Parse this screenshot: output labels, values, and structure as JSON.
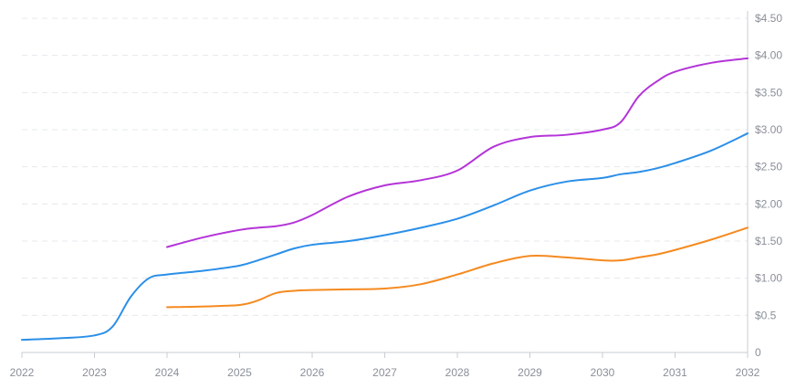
{
  "chart_data": {
    "type": "line",
    "title": "",
    "xlabel": "",
    "ylabel": "",
    "x": [
      2022,
      2022.5,
      2023,
      2023.25,
      2023.5,
      2023.75,
      2024,
      2024.5,
      2025,
      2025.25,
      2025.5,
      2025.75,
      2026,
      2026.5,
      2027,
      2027.5,
      2028,
      2028.5,
      2029,
      2029.5,
      2030,
      2030.25,
      2030.5,
      2030.75,
      2031,
      2031.5,
      2032
    ],
    "series": [
      {
        "color": "#2b8fe8",
        "values": [
          0.17,
          0.19,
          0.23,
          0.35,
          0.75,
          1.0,
          1.05,
          1.1,
          1.17,
          1.24,
          1.32,
          1.4,
          1.45,
          1.5,
          1.58,
          1.68,
          1.8,
          1.98,
          2.18,
          2.3,
          2.35,
          2.4,
          2.43,
          2.48,
          2.55,
          2.72,
          2.95
        ]
      },
      {
        "color": "#b434d8",
        "values": [
          null,
          null,
          null,
          null,
          null,
          null,
          1.42,
          1.55,
          1.65,
          1.68,
          1.7,
          1.75,
          1.85,
          2.1,
          2.25,
          2.32,
          2.45,
          2.77,
          2.9,
          2.93,
          3.0,
          3.1,
          3.45,
          3.65,
          3.78,
          3.9,
          3.96
        ]
      },
      {
        "color": "#f58a1f",
        "values": [
          null,
          null,
          null,
          null,
          null,
          null,
          0.61,
          0.62,
          0.64,
          0.7,
          0.8,
          0.83,
          0.84,
          0.85,
          0.86,
          0.92,
          1.05,
          1.2,
          1.3,
          1.28,
          1.24,
          1.24,
          1.28,
          1.32,
          1.38,
          1.52,
          1.68
        ]
      }
    ],
    "xlim": [
      2022,
      2032
    ],
    "ylim": [
      0,
      4.5
    ],
    "x_ticks": [
      "2022",
      "2023",
      "2024",
      "2025",
      "2026",
      "2027",
      "2028",
      "2029",
      "2030",
      "2031",
      "2032"
    ],
    "y_ticks": [
      "0",
      "$0.5",
      "$1.00",
      "$1.50",
      "$2.00",
      "$2.50",
      "$3.00",
      "$3.50",
      "$4.00",
      "$4.50"
    ],
    "grid": true,
    "y_axis_position": "right",
    "legend": "none"
  }
}
